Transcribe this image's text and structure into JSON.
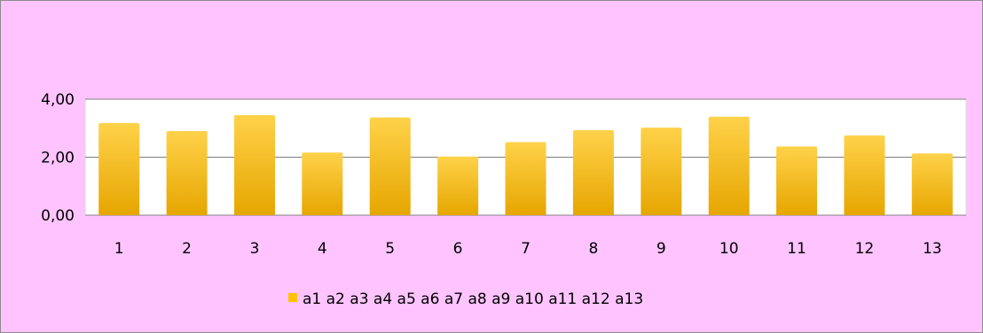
{
  "colors": {
    "chart_background": "#ffc4ff",
    "plot_background": "#ffffff",
    "bar_top": "#ffd24a",
    "bar_bottom": "#e6a600",
    "gridline": "#7f7f7f",
    "legend_marker": "#ffc000"
  },
  "chart_data": {
    "type": "bar",
    "title": "",
    "xlabel": "",
    "ylabel": "",
    "categories": [
      "1",
      "2",
      "3",
      "4",
      "5",
      "6",
      "7",
      "8",
      "9",
      "10",
      "11",
      "12",
      "13"
    ],
    "series": [
      {
        "name": "a1 a2 a3 a4 a5 a6 a7 a8 a9 a10 a11 a12 a13",
        "values": [
          3.18,
          2.9,
          3.45,
          2.16,
          3.37,
          2.02,
          2.52,
          2.93,
          3.02,
          3.4,
          2.37,
          2.75,
          2.13
        ]
      }
    ],
    "ylim": [
      0,
      4
    ],
    "yticks": [
      "0,00",
      "2,00",
      "4,00"
    ],
    "ytick_values": [
      0,
      2,
      4
    ],
    "grid": true,
    "legend_position": "bottom"
  }
}
